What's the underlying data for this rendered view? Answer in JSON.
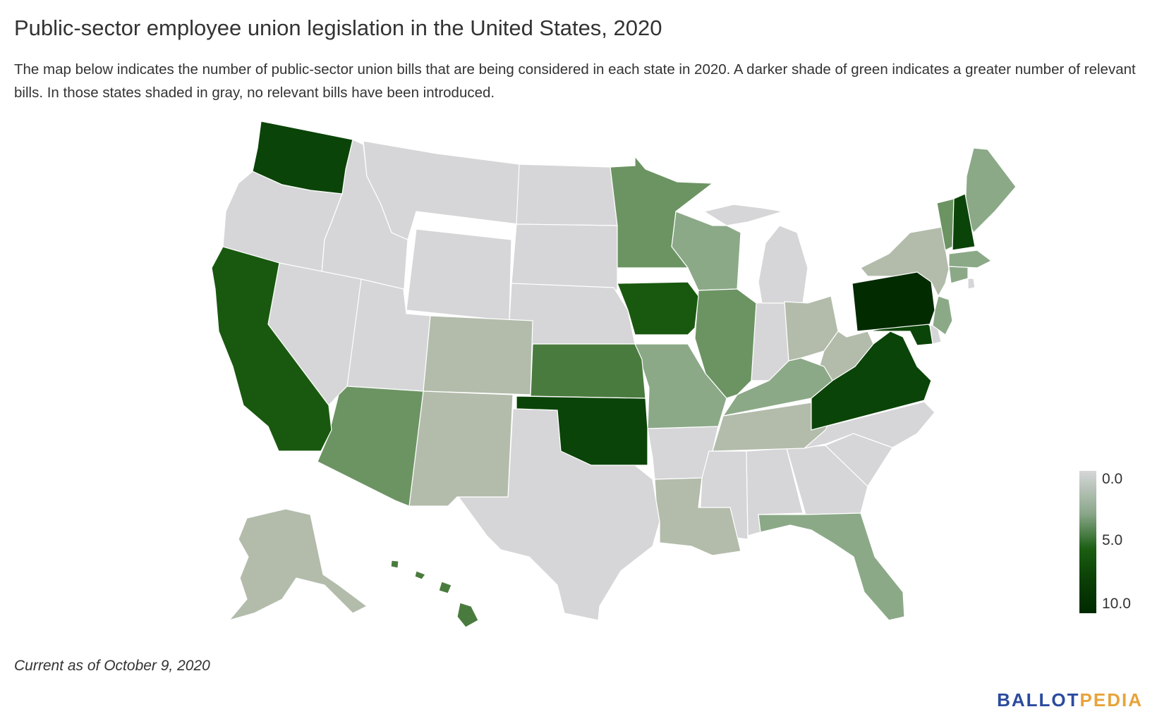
{
  "title": "Public-sector employee union legislation in the United States, 2020",
  "description": "The map below indicates the number of public-sector union bills that are being considered in each state in 2020. A darker shade of green indicates a greater number of relevant bills. In those states shaded in gray, no relevant bills have been introduced.",
  "legend": {
    "min_label": "0.0",
    "mid_label": "5.0",
    "max_label": "10.0",
    "colors": [
      "#d6d6d8",
      "#8aa78a",
      "#1a5e12",
      "#002a00"
    ]
  },
  "as_of": "Current as of October 9, 2020",
  "brand": {
    "part1": "BALLOT",
    "part2": "PEDIA"
  },
  "colors": {
    "none": "#d6d6d8",
    "c_light": "#b3bcab",
    "c_mid_light": "#8ba987",
    "c_mid": "#6c9463",
    "c_mid_dark": "#4a7b3e",
    "c_dark": "#19590f",
    "c_darker": "#0b4408",
    "c_darkest": "#032b00"
  }
}
